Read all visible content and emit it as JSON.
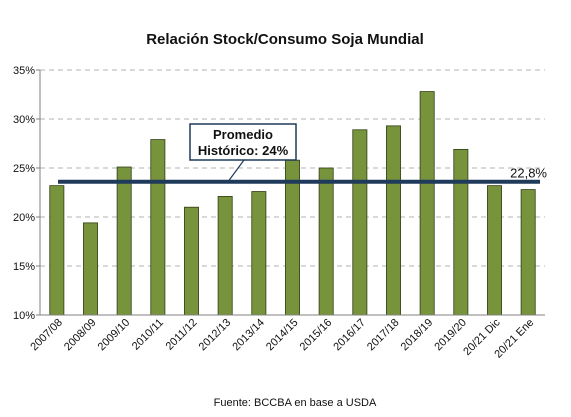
{
  "chart_data": {
    "type": "bar",
    "title": "Relación Stock/Consumo Soja Mundial",
    "categories": [
      "2007/08",
      "2008/09",
      "2009/10",
      "2010/11",
      "2011/12",
      "2012/13",
      "2013/14",
      "2014/15",
      "2015/16",
      "2016/17",
      "2017/18",
      "2018/19",
      "2019/20",
      "20/21 Dic",
      "20/21 Ene"
    ],
    "values": [
      23.2,
      19.4,
      25.1,
      27.9,
      21.0,
      22.1,
      22.6,
      25.8,
      25.0,
      28.9,
      29.3,
      32.8,
      26.9,
      23.2,
      22.8
    ],
    "ylim": [
      10,
      35
    ],
    "yticks": [
      "10%",
      "15%",
      "20%",
      "25%",
      "30%",
      "35%"
    ],
    "grid": true,
    "bar_color": "#77933c",
    "reference_line": {
      "value": 23.6,
      "color": "#1f3a5a"
    },
    "annotation": {
      "line1": "Promedio",
      "line2": "Histórico: 24%"
    },
    "last_value_label": "22,8%",
    "source": "Fuente: BCCBA en base a USDA"
  }
}
